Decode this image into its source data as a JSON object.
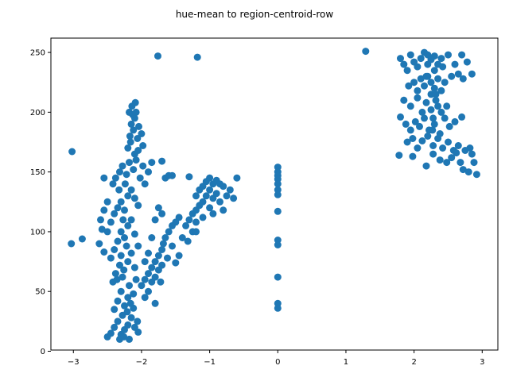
{
  "chart_data": {
    "type": "scatter",
    "title": "hue-mean to region-centroid-row",
    "xlabel": "",
    "ylabel": "",
    "xlim": [
      -3.33,
      3.23
    ],
    "ylim": [
      1.0,
      262.0
    ],
    "xticks": [
      -3,
      -2,
      -1,
      0,
      1,
      2,
      3
    ],
    "yticks": [
      0,
      50,
      100,
      150,
      200,
      250
    ],
    "grid": false,
    "marker_color": "#1f77b4",
    "points": [
      [
        -3.02,
        167
      ],
      [
        -3.03,
        90
      ],
      [
        -2.87,
        94
      ],
      [
        -2.6,
        110
      ],
      [
        -2.62,
        90
      ],
      [
        -2.55,
        83
      ],
      [
        -1.76,
        247
      ],
      [
        -1.18,
        246
      ],
      [
        1.29,
        251
      ],
      [
        0.0,
        154
      ],
      [
        0.0,
        150
      ],
      [
        0.0,
        147
      ],
      [
        0.0,
        144
      ],
      [
        0.0,
        140
      ],
      [
        0.0,
        135
      ],
      [
        0.0,
        131
      ],
      [
        0.0,
        117
      ],
      [
        0.0,
        93
      ],
      [
        0.0,
        89
      ],
      [
        0.0,
        62
      ],
      [
        0.0,
        40
      ],
      [
        0.0,
        36
      ],
      [
        -2.5,
        12
      ],
      [
        -2.45,
        15
      ],
      [
        -2.4,
        20
      ],
      [
        -2.35,
        25
      ],
      [
        -2.3,
        14
      ],
      [
        -2.28,
        30
      ],
      [
        -2.25,
        18
      ],
      [
        -2.2,
        22
      ],
      [
        -2.15,
        28
      ],
      [
        -2.1,
        20
      ],
      [
        -2.05,
        16
      ],
      [
        -2.4,
        35
      ],
      [
        -2.35,
        42
      ],
      [
        -2.3,
        50
      ],
      [
        -2.25,
        38
      ],
      [
        -2.2,
        45
      ],
      [
        -2.18,
        55
      ],
      [
        -2.12,
        48
      ],
      [
        -2.08,
        60
      ],
      [
        -2.42,
        58
      ],
      [
        -2.38,
        65
      ],
      [
        -2.32,
        72
      ],
      [
        -2.26,
        68
      ],
      [
        -2.2,
        75
      ],
      [
        -2.15,
        82
      ],
      [
        -2.1,
        70
      ],
      [
        -2.45,
        78
      ],
      [
        -2.4,
        85
      ],
      [
        -2.35,
        92
      ],
      [
        -2.3,
        100
      ],
      [
        -2.25,
        95
      ],
      [
        -2.2,
        105
      ],
      [
        -2.15,
        110
      ],
      [
        -2.1,
        98
      ],
      [
        -2.05,
        88
      ],
      [
        -2.5,
        100
      ],
      [
        -2.45,
        108
      ],
      [
        -2.4,
        115
      ],
      [
        -2.35,
        120
      ],
      [
        -2.3,
        125
      ],
      [
        -2.25,
        118
      ],
      [
        -2.2,
        130
      ],
      [
        -2.15,
        135
      ],
      [
        -2.1,
        128
      ],
      [
        -2.05,
        122
      ],
      [
        -2.42,
        140
      ],
      [
        -2.38,
        145
      ],
      [
        -2.32,
        150
      ],
      [
        -2.28,
        155
      ],
      [
        -2.22,
        148
      ],
      [
        -2.18,
        158
      ],
      [
        -2.12,
        152
      ],
      [
        -2.08,
        160
      ],
      [
        -2.02,
        145
      ],
      [
        -1.98,
        155
      ],
      [
        -1.95,
        140
      ],
      [
        -1.9,
        150
      ],
      [
        -1.85,
        158
      ],
      [
        -2.55,
        145
      ],
      [
        -2.5,
        125
      ],
      [
        -2.55,
        118
      ],
      [
        -2.58,
        102
      ],
      [
        -2.32,
        10
      ],
      [
        -2.26,
        12
      ],
      [
        -2.18,
        10
      ],
      [
        -2.36,
        60
      ],
      [
        -2.28,
        62
      ],
      [
        -2.22,
        88
      ],
      [
        -2.27,
        110
      ],
      [
        -2.33,
        135
      ],
      [
        -2.24,
        140
      ],
      [
        -2.3,
        80
      ],
      [
        -2.21,
        33
      ],
      [
        -2.16,
        40
      ],
      [
        -2.12,
        36
      ],
      [
        -2.06,
        25
      ],
      [
        -2.17,
        180
      ],
      [
        -2.15,
        190
      ],
      [
        -2.12,
        185
      ],
      [
        -2.1,
        195
      ],
      [
        -2.08,
        200
      ],
      [
        -2.14,
        205
      ],
      [
        -2.09,
        208
      ],
      [
        -2.16,
        175
      ],
      [
        -2.06,
        178
      ],
      [
        -2.04,
        188
      ],
      [
        -2.2,
        170
      ],
      [
        -2.0,
        182
      ],
      [
        -1.98,
        172
      ],
      [
        -2.18,
        200
      ],
      [
        -2.13,
        198
      ],
      [
        -2.05,
        168
      ],
      [
        -2.1,
        165
      ],
      [
        -2.0,
        55
      ],
      [
        -1.95,
        60
      ],
      [
        -1.9,
        65
      ],
      [
        -1.85,
        70
      ],
      [
        -1.8,
        75
      ],
      [
        -1.75,
        80
      ],
      [
        -1.7,
        85
      ],
      [
        -1.95,
        45
      ],
      [
        -1.9,
        50
      ],
      [
        -1.85,
        58
      ],
      [
        -1.8,
        62
      ],
      [
        -1.75,
        68
      ],
      [
        -1.7,
        72
      ],
      [
        -1.68,
        90
      ],
      [
        -1.65,
        95
      ],
      [
        -1.6,
        100
      ],
      [
        -1.55,
        105
      ],
      [
        -1.5,
        108
      ],
      [
        -1.45,
        112
      ],
      [
        -1.8,
        40
      ],
      [
        -1.72,
        58
      ],
      [
        -1.62,
        78
      ],
      [
        -1.55,
        88
      ],
      [
        -1.9,
        82
      ],
      [
        -1.85,
        95
      ],
      [
        -1.95,
        75
      ],
      [
        -1.8,
        110
      ],
      [
        -1.75,
        120
      ],
      [
        -1.7,
        115
      ],
      [
        -1.65,
        145
      ],
      [
        -1.6,
        147
      ],
      [
        -1.55,
        147
      ],
      [
        -1.3,
        146
      ],
      [
        -1.7,
        159
      ],
      [
        -1.5,
        74
      ],
      [
        -1.45,
        80
      ],
      [
        -1.4,
        95
      ],
      [
        -1.35,
        105
      ],
      [
        -1.3,
        110
      ],
      [
        -1.25,
        115
      ],
      [
        -1.2,
        118
      ],
      [
        -1.15,
        122
      ],
      [
        -1.1,
        125
      ],
      [
        -1.05,
        130
      ],
      [
        -1.0,
        135
      ],
      [
        -0.95,
        140
      ],
      [
        -0.9,
        143
      ],
      [
        -1.2,
        130
      ],
      [
        -1.15,
        135
      ],
      [
        -1.1,
        138
      ],
      [
        -1.05,
        142
      ],
      [
        -1.0,
        145
      ],
      [
        -0.95,
        128
      ],
      [
        -0.9,
        132
      ],
      [
        -0.85,
        125
      ],
      [
        -0.8,
        118
      ],
      [
        -0.75,
        130
      ],
      [
        -0.7,
        135
      ],
      [
        -0.65,
        128
      ],
      [
        -0.6,
        145
      ],
      [
        -0.85,
        140
      ],
      [
        -0.8,
        138
      ],
      [
        -0.95,
        115
      ],
      [
        -1.0,
        120
      ],
      [
        -1.1,
        112
      ],
      [
        -1.2,
        108
      ],
      [
        -1.25,
        100
      ],
      [
        -1.32,
        92
      ],
      [
        -1.2,
        100
      ],
      [
        1.8,
        245
      ],
      [
        1.85,
        240
      ],
      [
        1.9,
        235
      ],
      [
        1.95,
        248
      ],
      [
        2.0,
        242
      ],
      [
        2.05,
        238
      ],
      [
        2.1,
        245
      ],
      [
        2.15,
        250
      ],
      [
        2.2,
        248
      ],
      [
        2.25,
        244
      ],
      [
        2.3,
        247
      ],
      [
        2.35,
        240
      ],
      [
        2.4,
        245
      ],
      [
        2.5,
        248
      ],
      [
        2.6,
        240
      ],
      [
        2.7,
        248
      ],
      [
        2.78,
        242
      ],
      [
        2.85,
        232
      ],
      [
        1.92,
        222
      ],
      [
        2.0,
        225
      ],
      [
        2.05,
        218
      ],
      [
        2.1,
        228
      ],
      [
        2.15,
        222
      ],
      [
        2.2,
        230
      ],
      [
        2.25,
        225
      ],
      [
        2.3,
        220
      ],
      [
        2.35,
        228
      ],
      [
        2.4,
        218
      ],
      [
        2.45,
        225
      ],
      [
        2.55,
        230
      ],
      [
        2.65,
        232
      ],
      [
        2.72,
        228
      ],
      [
        1.85,
        210
      ],
      [
        1.95,
        205
      ],
      [
        2.05,
        212
      ],
      [
        2.12,
        200
      ],
      [
        2.18,
        208
      ],
      [
        2.25,
        202
      ],
      [
        2.32,
        210
      ],
      [
        2.4,
        200
      ],
      [
        2.48,
        205
      ],
      [
        1.8,
        196
      ],
      [
        1.88,
        190
      ],
      [
        1.95,
        185
      ],
      [
        2.02,
        192
      ],
      [
        2.08,
        188
      ],
      [
        2.15,
        195
      ],
      [
        2.22,
        185
      ],
      [
        2.3,
        190
      ],
      [
        2.38,
        182
      ],
      [
        2.45,
        195
      ],
      [
        2.52,
        188
      ],
      [
        2.6,
        192
      ],
      [
        2.7,
        196
      ],
      [
        1.9,
        175
      ],
      [
        1.98,
        178
      ],
      [
        2.05,
        170
      ],
      [
        2.12,
        176
      ],
      [
        2.2,
        180
      ],
      [
        2.28,
        172
      ],
      [
        2.35,
        178
      ],
      [
        2.42,
        170
      ],
      [
        2.5,
        175
      ],
      [
        2.58,
        168
      ],
      [
        2.65,
        172
      ],
      [
        1.78,
        164
      ],
      [
        1.98,
        163
      ],
      [
        2.18,
        155
      ],
      [
        2.28,
        165
      ],
      [
        2.38,
        160
      ],
      [
        2.48,
        158
      ],
      [
        2.55,
        162
      ],
      [
        2.62,
        166
      ],
      [
        2.68,
        158
      ],
      [
        2.72,
        152
      ],
      [
        2.75,
        168
      ],
      [
        2.8,
        150
      ],
      [
        2.85,
        165
      ],
      [
        2.88,
        158
      ],
      [
        2.92,
        148
      ],
      [
        2.82,
        170
      ],
      [
        2.2,
        240
      ],
      [
        2.3,
        235
      ],
      [
        2.25,
        215
      ],
      [
        2.35,
        205
      ],
      [
        2.28,
        195
      ],
      [
        2.18,
        230
      ],
      [
        2.42,
        238
      ],
      [
        2.32,
        215
      ],
      [
        2.27,
        185
      ]
    ]
  }
}
